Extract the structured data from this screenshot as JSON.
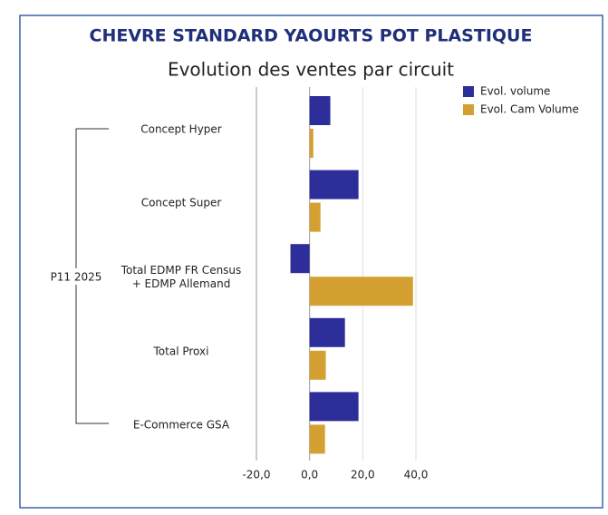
{
  "chart_data": {
    "type": "hbar",
    "title": "CHEVRE STANDARD YAOURTS POT PLASTIQUE",
    "subtitle": "Evolution des ventes par circuit",
    "group_label": "P11 2025",
    "categories": [
      "Concept Hyper",
      "Concept Super",
      "Total EDMP FR Census\n+ EDMP Allemand",
      "Total Proxi",
      "E-Commerce GSA"
    ],
    "series": [
      {
        "name": "Evol. volume",
        "color": "#2e2e9a",
        "values": [
          7.8,
          18.4,
          -7.2,
          13.3,
          18.4
        ]
      },
      {
        "name": "Evol. Cam Volume",
        "color": "#d4a032",
        "values": [
          1.4,
          4.1,
          38.9,
          6.1,
          5.8
        ]
      }
    ],
    "xlim": [
      -20,
      40
    ],
    "xticks": [
      {
        "value": -20,
        "label": "-20,0"
      },
      {
        "value": 0,
        "label": "0,0"
      },
      {
        "value": 20,
        "label": "20,0"
      },
      {
        "value": 40,
        "label": "40,0"
      }
    ],
    "grid": true
  }
}
